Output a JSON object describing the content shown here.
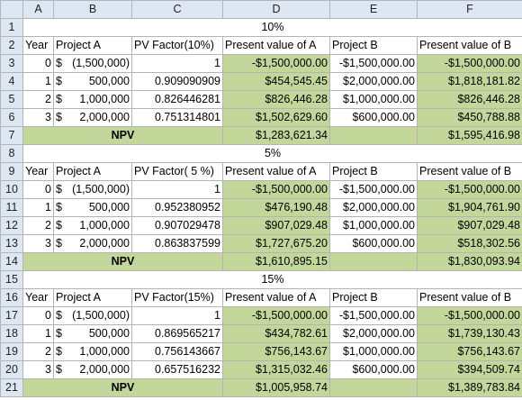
{
  "columns": [
    "A",
    "B",
    "C",
    "D",
    "E",
    "F"
  ],
  "headers": {
    "year": "Year",
    "project_a": "Project A",
    "present_value_a": "Present value of A",
    "project_b": "Project B",
    "present_value_b": "Present value of B",
    "npv_label": "NPV"
  },
  "sections": [
    {
      "title": "10%",
      "pv_factor_label": "PV Factor(10%)",
      "rows": [
        {
          "year": "0",
          "proj_a_sym": "$",
          "proj_a_val": "(1,500,000)",
          "factor": "1",
          "pv_a": "-$1,500,000.00",
          "proj_b": "-$1,500,000.00",
          "pv_b": "-$1,500,000.00"
        },
        {
          "year": "1",
          "proj_a_sym": "$",
          "proj_a_val": "500,000",
          "factor": "0.909090909",
          "pv_a": "$454,545.45",
          "proj_b": "$2,000,000.00",
          "pv_b": "$1,818,181.82"
        },
        {
          "year": "2",
          "proj_a_sym": "$",
          "proj_a_val": "1,000,000",
          "factor": "0.826446281",
          "pv_a": "$826,446.28",
          "proj_b": "$1,000,000.00",
          "pv_b": "$826,446.28"
        },
        {
          "year": "3",
          "proj_a_sym": "$",
          "proj_a_val": "2,000,000",
          "factor": "0.751314801",
          "pv_a": "$1,502,629.60",
          "proj_b": "$600,000.00",
          "pv_b": "$450,788.88"
        }
      ],
      "npv_a": "$1,283,621.34",
      "npv_b": "$1,595,416.98"
    },
    {
      "title": "5%",
      "pv_factor_label": "PV Factor( 5 %)",
      "rows": [
        {
          "year": "0",
          "proj_a_sym": "$",
          "proj_a_val": "(1,500,000)",
          "factor": "1",
          "pv_a": "-$1,500,000.00",
          "proj_b": "-$1,500,000.00",
          "pv_b": "-$1,500,000.00"
        },
        {
          "year": "1",
          "proj_a_sym": "$",
          "proj_a_val": "500,000",
          "factor": "0.952380952",
          "pv_a": "$476,190.48",
          "proj_b": "$2,000,000.00",
          "pv_b": "$1,904,761.90"
        },
        {
          "year": "2",
          "proj_a_sym": "$",
          "proj_a_val": "1,000,000",
          "factor": "0.907029478",
          "pv_a": "$907,029.48",
          "proj_b": "$1,000,000.00",
          "pv_b": "$907,029.48"
        },
        {
          "year": "3",
          "proj_a_sym": "$",
          "proj_a_val": "2,000,000",
          "factor": "0.863837599",
          "pv_a": "$1,727,675.20",
          "proj_b": "$600,000.00",
          "pv_b": "$518,302.56"
        }
      ],
      "npv_a": "$1,610,895.15",
      "npv_b": "$1,830,093.94"
    },
    {
      "title": "15%",
      "pv_factor_label": "PV Factor(15%)",
      "rows": [
        {
          "year": "0",
          "proj_a_sym": "$",
          "proj_a_val": "(1,500,000)",
          "factor": "1",
          "pv_a": "-$1,500,000.00",
          "proj_b": "-$1,500,000.00",
          "pv_b": "-$1,500,000.00"
        },
        {
          "year": "1",
          "proj_a_sym": "$",
          "proj_a_val": "500,000",
          "factor": "0.869565217",
          "pv_a": "$434,782.61",
          "proj_b": "$2,000,000.00",
          "pv_b": "$1,739,130.43"
        },
        {
          "year": "2",
          "proj_a_sym": "$",
          "proj_a_val": "1,000,000",
          "factor": "0.756143667",
          "pv_a": "$756,143.67",
          "proj_b": "$1,000,000.00",
          "pv_b": "$756,143.67"
        },
        {
          "year": "3",
          "proj_a_sym": "$",
          "proj_a_val": "2,000,000",
          "factor": "0.657516232",
          "pv_a": "$1,315,032.46",
          "proj_b": "$600,000.00",
          "pv_b": "$394,509.74"
        }
      ],
      "npv_a": "$1,005,958.74",
      "npv_b": "$1,389,783.84"
    }
  ]
}
